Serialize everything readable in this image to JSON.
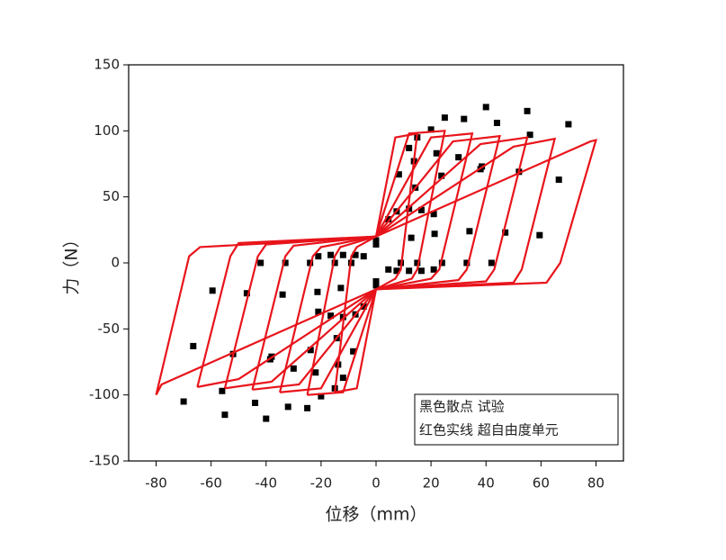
{
  "chart_data": {
    "type": "scatter",
    "xlabel": "位移（mm）",
    "ylabel": "力（N）",
    "xlim": [
      -90,
      90
    ],
    "ylim": [
      -150,
      150
    ],
    "xticks": [
      -80,
      -60,
      -40,
      -20,
      0,
      20,
      40,
      60,
      80
    ],
    "yticks": [
      -150,
      -100,
      -50,
      0,
      50,
      100,
      150
    ],
    "legend": "lower right",
    "series": [
      {
        "name": "黑色散点 试验",
        "color": "#000000",
        "mode": "markers",
        "x": [
          0,
          4.5,
          8.3,
          12,
          15,
          14.3,
          12.8,
          9,
          4.5,
          0,
          -4.5,
          -8.3,
          -12,
          -15,
          -14.3,
          -12.8,
          -9,
          -4.5,
          0,
          7.5,
          13.8,
          20,
          25,
          23.8,
          21.3,
          15,
          7.5,
          0,
          -7.5,
          -13.8,
          -20,
          -25,
          -23.8,
          -21.3,
          -15,
          -7.5,
          0,
          12,
          22,
          32,
          40,
          38,
          34,
          24,
          12,
          0,
          -12,
          -22,
          -32,
          -40,
          -38,
          -34,
          -24,
          -12,
          0,
          16.5,
          30,
          44,
          55,
          52,
          47,
          33,
          16.5,
          0,
          -16.5,
          -30,
          -44,
          -55,
          -52,
          -47,
          -33,
          -16.5,
          0,
          21,
          38.5,
          56,
          70,
          66.5,
          59.5,
          42,
          21,
          0,
          -21,
          -38.5,
          -56,
          -70,
          -66.5,
          -59.5,
          -42,
          -21
        ],
        "values": [
          14,
          33,
          67,
          87,
          95,
          57,
          19,
          0,
          -5,
          -14,
          -33,
          -67,
          -87,
          -95,
          -57,
          -19,
          0,
          5,
          16,
          39,
          77,
          101,
          110,
          66,
          22,
          0,
          -6,
          -16,
          -39,
          -77,
          -101,
          -110,
          -66,
          -22,
          0,
          6,
          17,
          41,
          83,
          109,
          118,
          71,
          24,
          0,
          -6,
          -17,
          -41,
          -83,
          -109,
          -118,
          -71,
          -24,
          0,
          6,
          17,
          40,
          80,
          106,
          115,
          69,
          23,
          0,
          -6,
          -17,
          -40,
          -80,
          -106,
          -115,
          -69,
          -23,
          0,
          6,
          16,
          37,
          73,
          97,
          105,
          63,
          21,
          0,
          -5,
          -16,
          -37,
          -73,
          -97,
          -105,
          -63,
          -21,
          0,
          5
        ]
      },
      {
        "name": "红色实线 超自由度单元",
        "color": "#e8141b",
        "mode": "lines",
        "x": [
          -15,
          -9,
          -7,
          0,
          7,
          15,
          9,
          7,
          0,
          -7,
          -15,
          null,
          -25,
          -15,
          -13,
          0,
          12,
          25,
          15,
          13,
          0,
          -12,
          -25,
          null,
          -35,
          -23,
          -20,
          0,
          20,
          35,
          23,
          20,
          0,
          -20,
          -35,
          null,
          -45,
          -33,
          -30,
          0,
          28,
          45,
          33,
          30,
          0,
          -28,
          -45,
          null,
          -55,
          -43,
          -40,
          0,
          38,
          55,
          43,
          40,
          0,
          -38,
          -55,
          null,
          -65,
          -53,
          -50,
          0,
          50,
          65,
          53,
          50,
          0,
          -50,
          -65,
          null,
          -80,
          -68,
          -64,
          -20,
          0,
          78,
          80,
          67,
          62,
          0,
          -78,
          -80
        ],
        "values": [
          -98,
          5,
          12,
          20,
          95,
          98,
          -5,
          -12,
          -20,
          -95,
          -98,
          null,
          -100,
          5,
          12,
          20,
          98,
          100,
          -5,
          -12,
          -20,
          -98,
          -100,
          null,
          -98,
          5,
          12,
          20,
          95,
          98,
          -5,
          -12,
          -20,
          -95,
          -98,
          null,
          -96,
          5,
          13,
          20,
          92,
          96,
          -5,
          -13,
          -20,
          -92,
          -96,
          null,
          -95,
          5,
          14,
          20,
          90,
          95,
          -5,
          -14,
          -20,
          -90,
          -95,
          null,
          -94,
          5,
          15,
          20,
          88,
          94,
          -5,
          -15,
          -20,
          -88,
          -94,
          null,
          -100,
          5,
          12,
          17,
          20,
          92,
          93,
          0,
          -15,
          -20,
          -92,
          -100
        ]
      }
    ]
  }
}
